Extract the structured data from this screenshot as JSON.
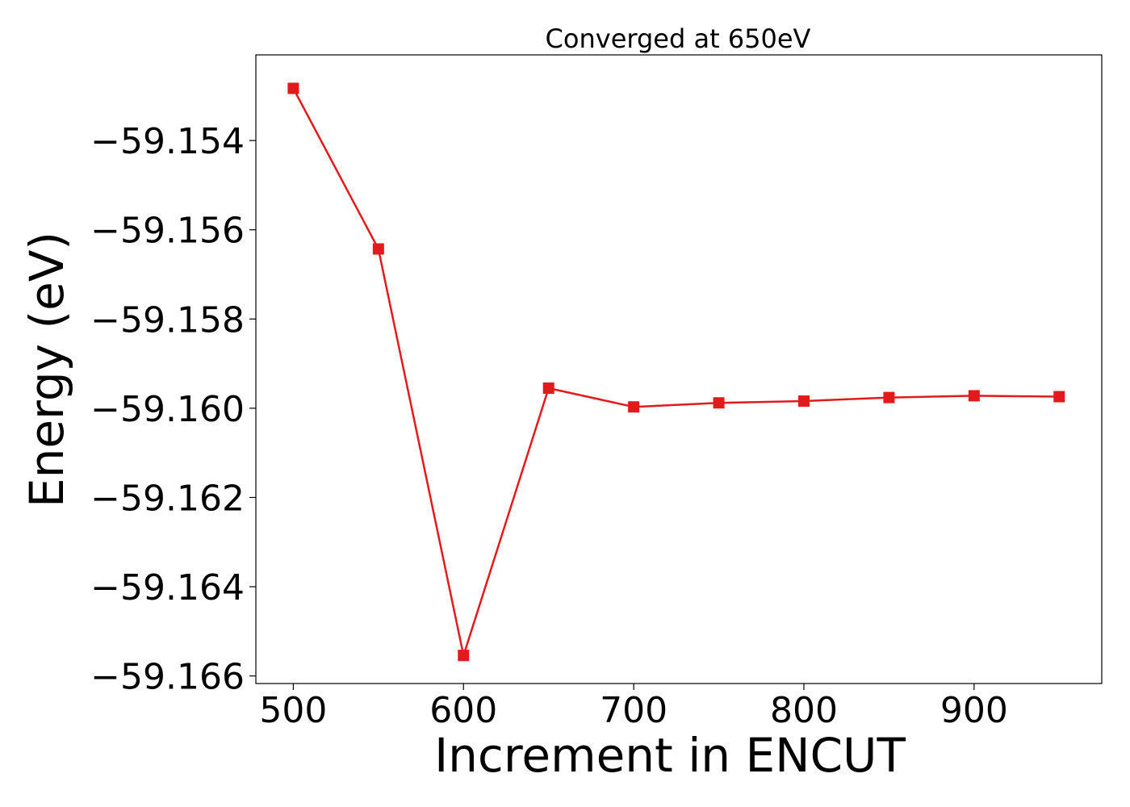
{
  "chart_data": {
    "type": "line",
    "title": "Converged at 650eV",
    "xlabel": "Increment in ENCUT",
    "ylabel": "Energy (eV)",
    "xlim": [
      478,
      975
    ],
    "ylim": [
      -59.16617,
      -59.15208
    ],
    "xticks": [
      500,
      600,
      700,
      800,
      900
    ],
    "xtick_labels": [
      "500",
      "600",
      "700",
      "800",
      "900"
    ],
    "yticks": [
      -59.154,
      -59.156,
      -59.158,
      -59.16,
      -59.162,
      -59.164,
      -59.166
    ],
    "ytick_labels": [
      "−59.154",
      "−59.156",
      "−59.158",
      "−59.160",
      "−59.162",
      "−59.164",
      "−59.166"
    ],
    "grid": false,
    "legend": "none",
    "series": [
      {
        "color": "#e31a1c",
        "marker": "square",
        "x": [
          500,
          550,
          600,
          650,
          700,
          750,
          800,
          850,
          900,
          950
        ],
        "y": [
          -59.15283,
          -59.15643,
          -59.16554,
          -59.15955,
          -59.15997,
          -59.15988,
          -59.15984,
          -59.15976,
          -59.15972,
          -59.15974
        ]
      }
    ]
  }
}
